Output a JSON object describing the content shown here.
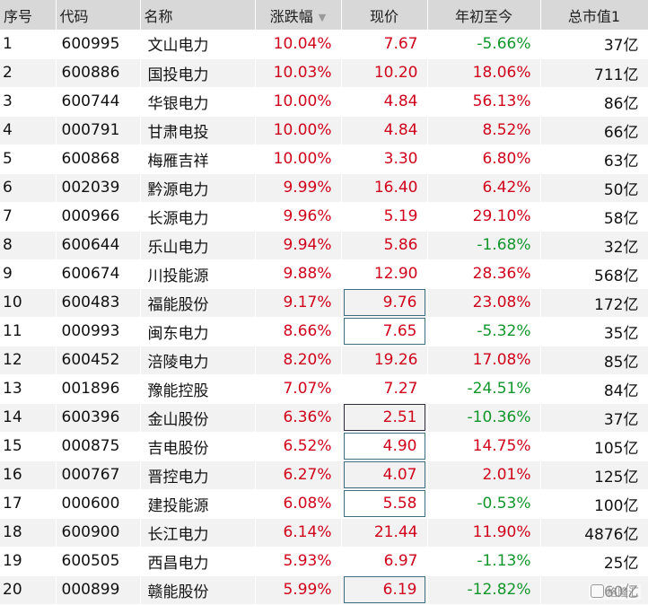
{
  "headers": {
    "idx": "序号",
    "code": "代码",
    "name": "名称",
    "change": "涨跌幅",
    "price": "现价",
    "ytd": "年初至今",
    "cap": "总市值1"
  },
  "rows": [
    {
      "idx": "1",
      "code": "600995",
      "name": "文山电力",
      "change": "10.04%",
      "price": "7.67",
      "ytd": "-5.66%",
      "cap": "37亿"
    },
    {
      "idx": "2",
      "code": "600886",
      "name": "国投电力",
      "change": "10.03%",
      "price": "10.20",
      "ytd": "18.06%",
      "cap": "711亿"
    },
    {
      "idx": "3",
      "code": "600744",
      "name": "华银电力",
      "change": "10.00%",
      "price": "4.84",
      "ytd": "56.13%",
      "cap": "86亿"
    },
    {
      "idx": "4",
      "code": "000791",
      "name": "甘肃电投",
      "change": "10.00%",
      "price": "4.84",
      "ytd": "8.52%",
      "cap": "66亿"
    },
    {
      "idx": "5",
      "code": "600868",
      "name": "梅雁吉祥",
      "change": "10.00%",
      "price": "3.30",
      "ytd": "6.80%",
      "cap": "63亿"
    },
    {
      "idx": "6",
      "code": "002039",
      "name": "黔源电力",
      "change": "9.99%",
      "price": "16.40",
      "ytd": "6.42%",
      "cap": "50亿"
    },
    {
      "idx": "7",
      "code": "000966",
      "name": "长源电力",
      "change": "9.96%",
      "price": "5.19",
      "ytd": "29.10%",
      "cap": "58亿"
    },
    {
      "idx": "8",
      "code": "600644",
      "name": "乐山电力",
      "change": "9.94%",
      "price": "5.86",
      "ytd": "-1.68%",
      "cap": "32亿"
    },
    {
      "idx": "9",
      "code": "600674",
      "name": "川投能源",
      "change": "9.88%",
      "price": "12.90",
      "ytd": "28.36%",
      "cap": "568亿"
    },
    {
      "idx": "10",
      "code": "600483",
      "name": "福能股份",
      "change": "9.17%",
      "price": "9.76",
      "ytd": "23.08%",
      "cap": "172亿"
    },
    {
      "idx": "11",
      "code": "000993",
      "name": "闽东电力",
      "change": "8.66%",
      "price": "7.65",
      "ytd": "-5.32%",
      "cap": "35亿"
    },
    {
      "idx": "12",
      "code": "600452",
      "name": "涪陵电力",
      "change": "8.20%",
      "price": "19.26",
      "ytd": "17.08%",
      "cap": "85亿"
    },
    {
      "idx": "13",
      "code": "001896",
      "name": "豫能控股",
      "change": "7.07%",
      "price": "7.27",
      "ytd": "-24.51%",
      "cap": "84亿"
    },
    {
      "idx": "14",
      "code": "600396",
      "name": "金山股份",
      "change": "6.36%",
      "price": "2.51",
      "ytd": "-10.36%",
      "cap": "37亿"
    },
    {
      "idx": "15",
      "code": "000875",
      "name": "吉电股份",
      "change": "6.52%",
      "price": "4.90",
      "ytd": "14.75%",
      "cap": "105亿"
    },
    {
      "idx": "16",
      "code": "000767",
      "name": "晋控电力",
      "change": "6.27%",
      "price": "4.07",
      "ytd": "2.01%",
      "cap": "125亿"
    },
    {
      "idx": "17",
      "code": "000600",
      "name": "建投能源",
      "change": "6.08%",
      "price": "5.58",
      "ytd": "-0.53%",
      "cap": "100亿"
    },
    {
      "idx": "18",
      "code": "600900",
      "name": "长江电力",
      "change": "6.14%",
      "price": "21.44",
      "ytd": "11.90%",
      "cap": "4876亿"
    },
    {
      "idx": "19",
      "code": "600505",
      "name": "西昌电力",
      "change": "5.93%",
      "price": "6.97",
      "ytd": "-1.13%",
      "cap": "25亿"
    },
    {
      "idx": "20",
      "code": "000899",
      "name": "赣能股份",
      "change": "5.99%",
      "price": "6.19",
      "ytd": "-12.82%",
      "cap": "60亿"
    }
  ],
  "boxed_price_rows": {
    "10": "teal",
    "11": "teal",
    "14": "dark",
    "15": "teal",
    "16": "teal",
    "17": "teal",
    "20": "teal"
  },
  "colors": {
    "up": "#d0021b",
    "down": "#12962b",
    "header_bg": "#d8d8d8",
    "alt_row": "#f2f2f2"
  },
  "sort_icon": "sort-desc-arrow-icon",
  "watermark": "格隆汇"
}
